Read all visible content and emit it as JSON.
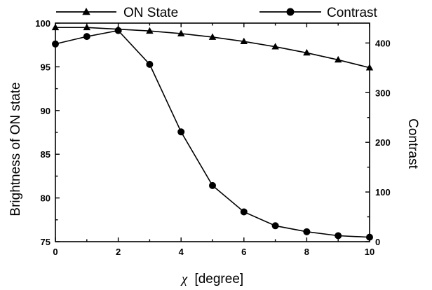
{
  "chart_data": {
    "type": "line",
    "xlabel_symbol": "χ",
    "xlabel": "[degree]",
    "ylabel_left": "Brightness of ON state",
    "ylabel_right": "Contrast",
    "xlim": [
      0,
      10
    ],
    "ylim_left": [
      75,
      100
    ],
    "ylim_right": [
      0,
      440
    ],
    "x_ticks": [
      0,
      2,
      4,
      6,
      8,
      10
    ],
    "y_left_ticks": [
      75,
      80,
      85,
      90,
      95,
      100
    ],
    "y_right_ticks": [
      0,
      100,
      200,
      300,
      400
    ],
    "grid": false,
    "legend_position": "top",
    "x": [
      0,
      1,
      2,
      3,
      4,
      5,
      6,
      7,
      8,
      9,
      10
    ],
    "series": [
      {
        "name": "ON State",
        "axis": "left",
        "marker": "triangle",
        "values": [
          99.5,
          99.5,
          99.3,
          99.1,
          98.8,
          98.4,
          97.9,
          97.3,
          96.6,
          95.8,
          94.9
        ]
      },
      {
        "name": "Contrast",
        "axis": "right",
        "marker": "circle",
        "values": [
          398,
          413,
          425,
          357,
          221,
          113,
          60,
          32,
          20,
          12,
          9
        ]
      }
    ]
  }
}
